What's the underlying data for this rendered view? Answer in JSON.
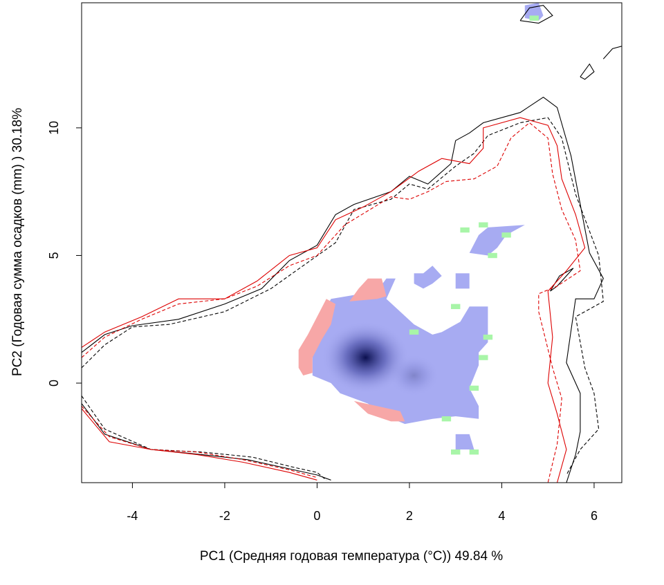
{
  "chart_data": {
    "type": "heatmap",
    "title": "",
    "xlabel": "PC1 (Средняя годовая температура (°C)) 49.84 %",
    "ylabel": "PC2 (Годовая сумма осадков  (mm) ) 30.18%",
    "xlim": [
      -5.1,
      6.6
    ],
    "ylim": [
      -3.9,
      14.9
    ],
    "xticks": [
      -4,
      -2,
      0,
      2,
      4,
      6
    ],
    "yticks": [
      0,
      5,
      10
    ],
    "xtick_labels": [
      "-4",
      "-2",
      "0",
      "2",
      "4",
      "6"
    ],
    "ytick_labels": [
      "0",
      "5",
      "10"
    ],
    "grid": false,
    "legend": "none",
    "colors": {
      "expansion": "#f7a7a7",
      "stability": "#a7abf2",
      "unfilling": "#a8f5a8",
      "density_peak": "#0b104f",
      "contour_native": "#000000",
      "contour_invaded": "#dd0000"
    },
    "cell_size": 0.2,
    "layers": [
      {
        "name": "stability",
        "color": "#a7abf2",
        "polygon": [
          [
            -0.1,
            0.3
          ],
          [
            -0.1,
            1.6
          ],
          [
            0.1,
            1.9
          ],
          [
            0.1,
            2.6
          ],
          [
            0.3,
            3.3
          ],
          [
            1.3,
            3.6
          ],
          [
            1.5,
            4.1
          ],
          [
            1.7,
            4.1
          ],
          [
            1.5,
            3.3
          ],
          [
            2.1,
            2.3
          ],
          [
            2.5,
            1.9
          ],
          [
            2.7,
            2.0
          ],
          [
            3.1,
            2.4
          ],
          [
            3.3,
            3.0
          ],
          [
            3.7,
            3.0
          ],
          [
            3.7,
            1.6
          ],
          [
            3.5,
            1.2
          ],
          [
            3.5,
            0.7
          ],
          [
            3.3,
            -0.2
          ],
          [
            3.5,
            -0.9
          ],
          [
            3.5,
            -1.4
          ],
          [
            3.0,
            -1.3
          ],
          [
            2.5,
            -1.4
          ],
          [
            1.9,
            -1.6
          ],
          [
            1.5,
            -1.3
          ],
          [
            1.1,
            -0.8
          ],
          [
            0.5,
            -0.4
          ],
          [
            0.3,
            0.0
          ]
        ]
      },
      {
        "name": "stability",
        "color": "#a7abf2",
        "polygon": [
          [
            3.3,
            5.1
          ],
          [
            3.5,
            5.8
          ],
          [
            3.7,
            6.1
          ],
          [
            4.5,
            6.2
          ],
          [
            4.1,
            5.8
          ],
          [
            3.9,
            5.3
          ],
          [
            3.7,
            5.0
          ]
        ]
      },
      {
        "name": "stability",
        "color": "#a7abf2",
        "polygon": [
          [
            2.1,
            3.9
          ],
          [
            2.1,
            4.3
          ],
          [
            2.3,
            4.3
          ],
          [
            2.5,
            4.6
          ],
          [
            2.7,
            4.2
          ],
          [
            2.5,
            3.9
          ],
          [
            2.3,
            3.7
          ]
        ]
      },
      {
        "name": "stability",
        "color": "#a7abf2",
        "polygon": [
          [
            3.0,
            3.7
          ],
          [
            3.0,
            4.3
          ],
          [
            3.3,
            4.3
          ],
          [
            3.3,
            3.7
          ]
        ]
      },
      {
        "name": "stability",
        "color": "#a7abf2",
        "polygon": [
          [
            3.0,
            -2.6
          ],
          [
            3.0,
            -2.0
          ],
          [
            3.3,
            -2.0
          ],
          [
            3.4,
            -2.6
          ]
        ]
      },
      {
        "name": "stability",
        "color": "#a7abf2",
        "polygon": [
          [
            4.5,
            14.3
          ],
          [
            4.5,
            14.8
          ],
          [
            4.8,
            14.9
          ],
          [
            4.9,
            14.4
          ],
          [
            4.8,
            14.2
          ]
        ]
      },
      {
        "name": "expansion",
        "color": "#f7a7a7",
        "polygon": [
          [
            -0.4,
            0.6
          ],
          [
            -0.4,
            1.3
          ],
          [
            -0.2,
            1.9
          ],
          [
            0.0,
            2.6
          ],
          [
            0.2,
            3.3
          ],
          [
            0.4,
            3.1
          ],
          [
            0.3,
            2.3
          ],
          [
            0.1,
            1.7
          ],
          [
            -0.1,
            1.0
          ],
          [
            -0.1,
            0.4
          ],
          [
            -0.3,
            0.3
          ]
        ]
      },
      {
        "name": "expansion",
        "color": "#f7a7a7",
        "polygon": [
          [
            0.7,
            3.2
          ],
          [
            0.9,
            3.7
          ],
          [
            1.1,
            4.1
          ],
          [
            1.4,
            4.1
          ],
          [
            1.5,
            3.4
          ],
          [
            1.3,
            3.3
          ]
        ]
      },
      {
        "name": "expansion",
        "color": "#f7a7a7",
        "polygon": [
          [
            0.8,
            -0.7
          ],
          [
            1.1,
            -1.2
          ],
          [
            1.6,
            -1.5
          ],
          [
            1.9,
            -1.5
          ],
          [
            1.8,
            -1.1
          ],
          [
            1.3,
            -0.9
          ]
        ]
      },
      {
        "name": "unfilling",
        "color": "#a8f5a8",
        "points": [
          [
            3.2,
            6.0
          ],
          [
            3.6,
            6.2
          ],
          [
            4.1,
            5.8
          ],
          [
            3.8,
            5.0
          ],
          [
            2.1,
            2.0
          ],
          [
            3.0,
            3.0
          ],
          [
            3.7,
            1.8
          ],
          [
            3.6,
            1.0
          ],
          [
            3.4,
            -0.2
          ],
          [
            2.8,
            -1.4
          ],
          [
            3.0,
            -2.7
          ],
          [
            3.4,
            -2.7
          ],
          [
            4.7,
            14.3
          ]
        ]
      }
    ],
    "density_peaks": [
      {
        "x": 1.05,
        "y": 1.0,
        "value": 1.0
      },
      {
        "x": 2.1,
        "y": 0.3,
        "value": 0.25
      }
    ],
    "series": [
      {
        "color": "#000000",
        "style": "solid",
        "points": [
          [
            -5.1,
            1.2
          ],
          [
            -4.6,
            1.9
          ],
          [
            -4.0,
            2.25
          ],
          [
            -3.0,
            2.5
          ],
          [
            -2.0,
            3.1
          ],
          [
            -1.2,
            3.7
          ],
          [
            -0.6,
            4.8
          ],
          [
            0.0,
            5.4
          ],
          [
            0.4,
            6.6
          ],
          [
            0.8,
            7.0
          ],
          [
            1.6,
            7.5
          ],
          [
            2.0,
            8.1
          ],
          [
            2.4,
            7.8
          ],
          [
            2.9,
            8.6
          ],
          [
            3.0,
            9.5
          ],
          [
            3.3,
            9.8
          ],
          [
            3.6,
            10.2
          ],
          [
            4.4,
            10.6
          ],
          [
            4.9,
            11.2
          ],
          [
            5.2,
            10.8
          ],
          [
            5.5,
            8.9
          ],
          [
            5.9,
            5.1
          ],
          [
            6.2,
            4.1
          ],
          [
            6.0,
            3.3
          ],
          [
            5.6,
            3.3
          ],
          [
            5.4,
            0.8
          ],
          [
            5.7,
            -0.4
          ],
          [
            5.7,
            -1.9
          ],
          [
            5.6,
            -2.8
          ],
          [
            5.4,
            -3.9
          ]
        ]
      },
      {
        "color": "#000000",
        "style": "solid",
        "points": [
          [
            5.05,
            3.6
          ],
          [
            5.25,
            4.2
          ],
          [
            5.55,
            4.5
          ],
          [
            5.2,
            3.8
          ],
          [
            5.05,
            3.6
          ]
        ]
      },
      {
        "color": "#000000",
        "style": "dashed",
        "points": [
          [
            -5.1,
            0.6
          ],
          [
            -4.6,
            1.5
          ],
          [
            -4.0,
            2.2
          ],
          [
            -3.2,
            2.3
          ],
          [
            -2.0,
            2.8
          ],
          [
            -1.0,
            3.7
          ],
          [
            -0.3,
            4.6
          ],
          [
            0.4,
            5.5
          ],
          [
            0.8,
            6.8
          ],
          [
            1.6,
            7.2
          ],
          [
            2.0,
            7.8
          ],
          [
            2.4,
            7.6
          ],
          [
            3.0,
            8.5
          ],
          [
            3.4,
            9.0
          ],
          [
            3.7,
            9.7
          ],
          [
            4.4,
            10.2
          ],
          [
            5.0,
            10.4
          ],
          [
            5.3,
            9.6
          ],
          [
            5.6,
            7.4
          ],
          [
            6.1,
            5.0
          ],
          [
            6.2,
            3.2
          ],
          [
            5.6,
            2.6
          ],
          [
            5.8,
            0.6
          ],
          [
            6.0,
            -0.4
          ],
          [
            6.1,
            -1.8
          ],
          [
            5.7,
            -2.6
          ],
          [
            5.4,
            -3.6
          ]
        ]
      },
      {
        "color": "#000000",
        "style": "solid",
        "points": [
          [
            -5.1,
            -0.8
          ],
          [
            -4.6,
            -2.0
          ],
          [
            -3.6,
            -2.6
          ],
          [
            -2.5,
            -2.8
          ],
          [
            -1.5,
            -3.0
          ],
          [
            -0.5,
            -3.4
          ],
          [
            0.0,
            -3.6
          ],
          [
            0.3,
            -3.8
          ]
        ]
      },
      {
        "color": "#000000",
        "style": "dashed",
        "points": [
          [
            -5.1,
            -0.5
          ],
          [
            -4.6,
            -1.8
          ],
          [
            -3.6,
            -2.6
          ],
          [
            -2.5,
            -2.7
          ],
          [
            -1.4,
            -2.9
          ],
          [
            -0.5,
            -3.3
          ],
          [
            0.0,
            -3.5
          ],
          [
            0.2,
            -3.8
          ]
        ]
      },
      {
        "color": "#dd0000",
        "style": "solid",
        "points": [
          [
            -5.1,
            1.4
          ],
          [
            -4.6,
            2.0
          ],
          [
            -3.8,
            2.6
          ],
          [
            -3.0,
            3.3
          ],
          [
            -2.0,
            3.3
          ],
          [
            -1.3,
            4.0
          ],
          [
            -0.6,
            5.0
          ],
          [
            0.0,
            5.3
          ],
          [
            0.4,
            6.4
          ],
          [
            1.0,
            6.9
          ],
          [
            1.6,
            7.5
          ],
          [
            2.2,
            8.3
          ],
          [
            2.7,
            8.8
          ],
          [
            3.3,
            8.6
          ],
          [
            3.6,
            9.2
          ],
          [
            3.6,
            10.0
          ],
          [
            4.4,
            10.4
          ],
          [
            5.0,
            10.1
          ],
          [
            5.2,
            9.3
          ],
          [
            5.3,
            8.0
          ],
          [
            5.6,
            6.6
          ],
          [
            5.8,
            5.3
          ],
          [
            5.4,
            4.4
          ],
          [
            5.0,
            3.6
          ],
          [
            5.1,
            1.8
          ],
          [
            5.0,
            0.0
          ],
          [
            5.2,
            -1.2
          ],
          [
            5.4,
            -2.6
          ],
          [
            5.2,
            -3.9
          ]
        ]
      },
      {
        "color": "#dd0000",
        "style": "dashed",
        "points": [
          [
            -5.1,
            1.0
          ],
          [
            -4.6,
            1.8
          ],
          [
            -3.8,
            2.5
          ],
          [
            -3.0,
            3.1
          ],
          [
            -2.0,
            3.3
          ],
          [
            -1.3,
            3.8
          ],
          [
            -0.6,
            4.6
          ],
          [
            0.0,
            5.0
          ],
          [
            0.6,
            6.2
          ],
          [
            1.6,
            7.3
          ],
          [
            2.0,
            7.2
          ],
          [
            2.4,
            7.5
          ],
          [
            2.8,
            7.9
          ],
          [
            3.4,
            8.0
          ],
          [
            3.9,
            8.5
          ],
          [
            4.2,
            9.6
          ],
          [
            4.6,
            10.2
          ],
          [
            5.0,
            9.6
          ],
          [
            5.1,
            8.2
          ],
          [
            5.3,
            6.8
          ],
          [
            5.6,
            5.6
          ],
          [
            5.7,
            4.4
          ],
          [
            5.2,
            3.8
          ],
          [
            4.8,
            3.5
          ],
          [
            4.8,
            2.8
          ],
          [
            5.1,
            0.6
          ],
          [
            5.3,
            -0.6
          ],
          [
            5.2,
            -2.4
          ],
          [
            5.0,
            -3.9
          ]
        ]
      },
      {
        "color": "#dd0000",
        "style": "solid",
        "points": [
          [
            -5.1,
            -1.0
          ],
          [
            -4.5,
            -2.3
          ],
          [
            -3.6,
            -2.6
          ],
          [
            -2.6,
            -2.8
          ],
          [
            -1.6,
            -3.1
          ],
          [
            -0.6,
            -3.5
          ],
          [
            0.0,
            -3.8
          ]
        ]
      },
      {
        "color": "#dd0000",
        "style": "dashed",
        "points": [
          [
            -5.1,
            -0.9
          ],
          [
            -4.5,
            -2.1
          ],
          [
            -3.6,
            -2.6
          ],
          [
            -2.6,
            -2.7
          ],
          [
            -1.6,
            -3.0
          ],
          [
            -0.6,
            -3.4
          ],
          [
            0.0,
            -3.7
          ]
        ]
      },
      {
        "color": "#000000",
        "style": "solid",
        "points": [
          [
            4.4,
            14.2
          ],
          [
            4.6,
            14.7
          ],
          [
            4.9,
            14.8
          ],
          [
            5.1,
            14.4
          ],
          [
            4.8,
            14.1
          ],
          [
            4.4,
            14.2
          ]
        ]
      },
      {
        "color": "#000000",
        "style": "solid",
        "points": [
          [
            5.7,
            12.0
          ],
          [
            5.9,
            12.5
          ],
          [
            6.0,
            12.2
          ],
          [
            5.8,
            11.9
          ],
          [
            5.7,
            12.0
          ]
        ]
      },
      {
        "color": "#000000",
        "style": "solid",
        "points": [
          [
            6.2,
            12.7
          ],
          [
            6.4,
            13.1
          ],
          [
            6.6,
            13.2
          ]
        ]
      }
    ]
  }
}
